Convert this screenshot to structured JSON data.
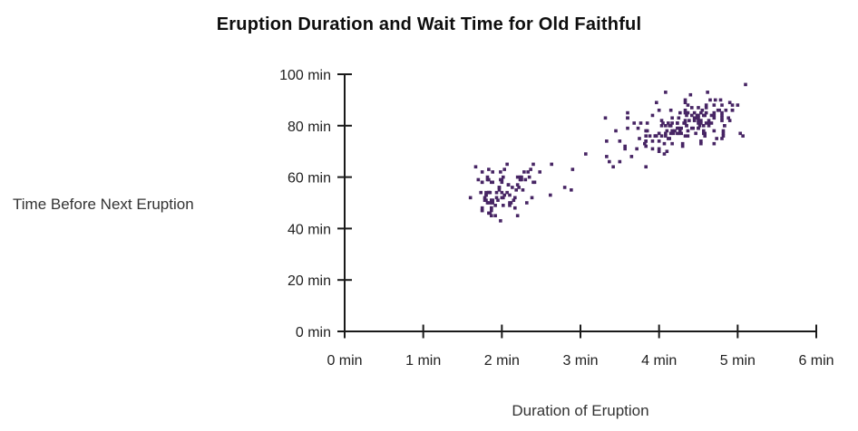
{
  "colors": {
    "point": "#472564",
    "axis": "#1a1a1a",
    "tick_text": "#1f1f1f",
    "axis_title_text": "#333333",
    "title_text": "#0e0e0e",
    "background": "#ffffff"
  },
  "chart_data": {
    "type": "scatter",
    "title": "Eruption Duration and Wait Time for Old Faithful",
    "xlabel": "Duration of Eruption",
    "ylabel": "Time Before Next Eruption",
    "xlim": [
      0,
      6
    ],
    "ylim": [
      0,
      100
    ],
    "grid": false,
    "legend": false,
    "marker": "square",
    "x_ticks": [
      {
        "value": 0,
        "label": "0 min"
      },
      {
        "value": 1,
        "label": "1 min"
      },
      {
        "value": 2,
        "label": "2 min"
      },
      {
        "value": 3,
        "label": "3 min"
      },
      {
        "value": 4,
        "label": "4 min"
      },
      {
        "value": 5,
        "label": "5 min"
      },
      {
        "value": 6,
        "label": "6 min"
      }
    ],
    "y_ticks": [
      {
        "value": 0,
        "label": "0 min"
      },
      {
        "value": 20,
        "label": "20 min"
      },
      {
        "value": 40,
        "label": "40 min"
      },
      {
        "value": 60,
        "label": "60 min"
      },
      {
        "value": 80,
        "label": "80 min"
      },
      {
        "value": 100,
        "label": "100 min"
      }
    ],
    "points": [
      [
        3.6,
        79
      ],
      [
        1.8,
        54
      ],
      [
        3.333,
        74
      ],
      [
        2.283,
        62
      ],
      [
        4.533,
        85
      ],
      [
        2.883,
        55
      ],
      [
        4.7,
        88
      ],
      [
        3.6,
        85
      ],
      [
        1.95,
        51
      ],
      [
        4.35,
        85
      ],
      [
        1.833,
        54
      ],
      [
        3.917,
        84
      ],
      [
        4.2,
        78
      ],
      [
        1.75,
        47
      ],
      [
        4.7,
        83
      ],
      [
        2.167,
        52
      ],
      [
        1.75,
        62
      ],
      [
        4.8,
        84
      ],
      [
        1.6,
        52
      ],
      [
        4.25,
        79
      ],
      [
        1.8,
        51
      ],
      [
        1.75,
        47
      ],
      [
        3.45,
        78
      ],
      [
        3.067,
        69
      ],
      [
        4.533,
        74
      ],
      [
        3.6,
        83
      ],
      [
        1.967,
        55
      ],
      [
        4.083,
        76
      ],
      [
        3.85,
        78
      ],
      [
        4.433,
        79
      ],
      [
        4.3,
        73
      ],
      [
        4.467,
        77
      ],
      [
        3.367,
        66
      ],
      [
        4.033,
        80
      ],
      [
        3.833,
        74
      ],
      [
        2.017,
        52
      ],
      [
        1.867,
        48
      ],
      [
        4.833,
        80
      ],
      [
        1.833,
        59
      ],
      [
        4.783,
        90
      ],
      [
        4.35,
        80
      ],
      [
        1.883,
        58
      ],
      [
        4.567,
        84
      ],
      [
        1.75,
        58
      ],
      [
        4.533,
        73
      ],
      [
        3.317,
        83
      ],
      [
        3.833,
        64
      ],
      [
        2.1,
        53
      ],
      [
        4.633,
        82
      ],
      [
        2.0,
        59
      ],
      [
        4.8,
        75
      ],
      [
        4.716,
        90
      ],
      [
        1.833,
        54
      ],
      [
        4.833,
        80
      ],
      [
        1.733,
        54
      ],
      [
        4.883,
        83
      ],
      [
        3.717,
        71
      ],
      [
        1.667,
        64
      ],
      [
        4.567,
        77
      ],
      [
        4.317,
        81
      ],
      [
        2.233,
        59
      ],
      [
        4.5,
        84
      ],
      [
        1.75,
        48
      ],
      [
        4.8,
        82
      ],
      [
        1.817,
        60
      ],
      [
        4.4,
        92
      ],
      [
        4.167,
        78
      ],
      [
        4.7,
        78
      ],
      [
        2.067,
        65
      ],
      [
        4.7,
        73
      ],
      [
        4.033,
        82
      ],
      [
        1.967,
        56
      ],
      [
        4.5,
        79
      ],
      [
        4.0,
        71
      ],
      [
        1.983,
        62
      ],
      [
        5.067,
        76
      ],
      [
        2.017,
        60
      ],
      [
        4.567,
        78
      ],
      [
        3.883,
        76
      ],
      [
        3.6,
        83
      ],
      [
        4.133,
        75
      ],
      [
        4.333,
        82
      ],
      [
        4.1,
        70
      ],
      [
        2.633,
        65
      ],
      [
        4.067,
        73
      ],
      [
        4.933,
        88
      ],
      [
        3.95,
        76
      ],
      [
        4.517,
        80
      ],
      [
        2.167,
        48
      ],
      [
        4.0,
        86
      ],
      [
        2.2,
        60
      ],
      [
        4.333,
        90
      ],
      [
        1.867,
        50
      ],
      [
        4.817,
        78
      ],
      [
        1.833,
        63
      ],
      [
        4.3,
        72
      ],
      [
        4.667,
        84
      ],
      [
        3.75,
        75
      ],
      [
        1.867,
        51
      ],
      [
        4.9,
        82
      ],
      [
        2.483,
        62
      ],
      [
        4.367,
        88
      ],
      [
        2.1,
        49
      ],
      [
        4.5,
        83
      ],
      [
        4.05,
        81
      ],
      [
        1.867,
        47
      ],
      [
        4.7,
        84
      ],
      [
        1.783,
        52
      ],
      [
        4.85,
        86
      ],
      [
        3.683,
        81
      ],
      [
        4.733,
        75
      ],
      [
        2.3,
        59
      ],
      [
        4.9,
        89
      ],
      [
        4.417,
        79
      ],
      [
        1.7,
        59
      ],
      [
        4.633,
        81
      ],
      [
        2.317,
        50
      ],
      [
        4.6,
        85
      ],
      [
        1.817,
        59
      ],
      [
        4.417,
        87
      ],
      [
        2.617,
        53
      ],
      [
        4.067,
        69
      ],
      [
        4.25,
        77
      ],
      [
        1.967,
        56
      ],
      [
        4.6,
        88
      ],
      [
        3.767,
        81
      ],
      [
        1.917,
        45
      ],
      [
        4.5,
        82
      ],
      [
        2.267,
        55
      ],
      [
        4.65,
        90
      ],
      [
        1.867,
        45
      ],
      [
        4.167,
        83
      ],
      [
        2.8,
        56
      ],
      [
        4.333,
        89
      ],
      [
        1.833,
        46
      ],
      [
        4.383,
        82
      ],
      [
        1.883,
        51
      ],
      [
        4.933,
        86
      ],
      [
        2.033,
        53
      ],
      [
        3.733,
        79
      ],
      [
        4.233,
        81
      ],
      [
        2.233,
        60
      ],
      [
        4.533,
        82
      ],
      [
        4.817,
        77
      ],
      [
        4.333,
        76
      ],
      [
        1.983,
        59
      ],
      [
        4.633,
        80
      ],
      [
        2.017,
        49
      ],
      [
        5.1,
        96
      ],
      [
        1.8,
        53
      ],
      [
        5.033,
        77
      ],
      [
        4.0,
        77
      ],
      [
        2.4,
        65
      ],
      [
        4.6,
        81
      ],
      [
        3.567,
        71
      ],
      [
        4.0,
        70
      ],
      [
        4.5,
        81
      ],
      [
        4.083,
        93
      ],
      [
        1.8,
        53
      ],
      [
        3.967,
        89
      ],
      [
        2.2,
        45
      ],
      [
        4.15,
        86
      ],
      [
        2.0,
        58
      ],
      [
        3.833,
        78
      ],
      [
        3.5,
        66
      ],
      [
        4.583,
        76
      ],
      [
        2.367,
        63
      ],
      [
        5.0,
        88
      ],
      [
        1.933,
        52
      ],
      [
        4.617,
        93
      ],
      [
        1.917,
        49
      ],
      [
        2.083,
        57
      ],
      [
        4.583,
        77
      ],
      [
        3.333,
        68
      ],
      [
        4.167,
        81
      ],
      [
        4.333,
        81
      ],
      [
        4.167,
        73
      ],
      [
        2.117,
        50
      ],
      [
        4.333,
        85
      ],
      [
        1.883,
        62
      ],
      [
        4.567,
        80
      ],
      [
        2.033,
        63
      ],
      [
        3.833,
        76
      ],
      [
        4.817,
        76
      ],
      [
        4.333,
        86
      ],
      [
        2.183,
        55
      ],
      [
        4.8,
        83
      ],
      [
        1.833,
        50
      ],
      [
        4.8,
        85
      ],
      [
        4.1,
        78
      ],
      [
        3.966,
        76
      ],
      [
        4.233,
        81
      ],
      [
        3.5,
        74
      ],
      [
        4.366,
        76
      ],
      [
        2.25,
        59
      ],
      [
        4.667,
        81
      ],
      [
        2.1,
        50
      ],
      [
        4.35,
        84
      ],
      [
        4.133,
        80
      ],
      [
        1.867,
        48
      ],
      [
        4.6,
        87
      ],
      [
        1.783,
        51
      ],
      [
        4.367,
        78
      ],
      [
        3.85,
        81
      ],
      [
        1.933,
        54
      ],
      [
        4.5,
        87
      ],
      [
        2.383,
        52
      ],
      [
        4.7,
        85
      ],
      [
        1.867,
        58
      ],
      [
        3.833,
        74
      ],
      [
        3.417,
        64
      ],
      [
        4.233,
        77
      ],
      [
        2.4,
        58
      ],
      [
        4.8,
        88
      ],
      [
        2.0,
        54
      ],
      [
        4.15,
        77
      ],
      [
        1.867,
        51
      ],
      [
        4.267,
        85
      ],
      [
        1.75,
        58
      ],
      [
        4.483,
        84
      ],
      [
        4.0,
        74
      ],
      [
        4.117,
        81
      ],
      [
        4.083,
        77
      ],
      [
        4.267,
        78
      ],
      [
        3.917,
        71
      ],
      [
        4.55,
        86
      ],
      [
        4.083,
        80
      ],
      [
        2.417,
        58
      ],
      [
        4.183,
        77
      ],
      [
        2.217,
        56
      ],
      [
        4.45,
        83
      ],
      [
        1.883,
        50
      ],
      [
        1.85,
        54
      ],
      [
        4.283,
        77
      ],
      [
        3.95,
        76
      ],
      [
        2.333,
        62
      ],
      [
        4.15,
        80
      ],
      [
        2.35,
        60
      ],
      [
        4.933,
        86
      ],
      [
        2.9,
        63
      ],
      [
        4.583,
        84
      ],
      [
        3.833,
        72
      ],
      [
        2.083,
        57
      ],
      [
        4.367,
        85
      ],
      [
        2.133,
        56
      ],
      [
        4.35,
        80
      ],
      [
        2.2,
        57
      ],
      [
        4.45,
        85
      ],
      [
        3.567,
        72
      ],
      [
        4.5,
        79
      ],
      [
        4.15,
        80
      ],
      [
        3.817,
        73
      ],
      [
        3.917,
        74
      ],
      [
        4.45,
        82
      ],
      [
        2.0,
        52
      ],
      [
        4.283,
        79
      ],
      [
        4.767,
        86
      ],
      [
        4.533,
        81
      ],
      [
        1.85,
        46
      ],
      [
        4.25,
        83
      ],
      [
        1.983,
        43
      ],
      [
        2.25,
        60
      ],
      [
        4.75,
        86
      ],
      [
        4.117,
        75
      ],
      [
        2.15,
        51
      ],
      [
        4.417,
        84
      ],
      [
        1.817,
        50
      ],
      [
        4.467,
        83
      ],
      [
        3.65,
        68
      ],
      [
        4.033,
        76
      ],
      [
        2.067,
        54
      ],
      [
        4.233,
        79
      ]
    ]
  }
}
